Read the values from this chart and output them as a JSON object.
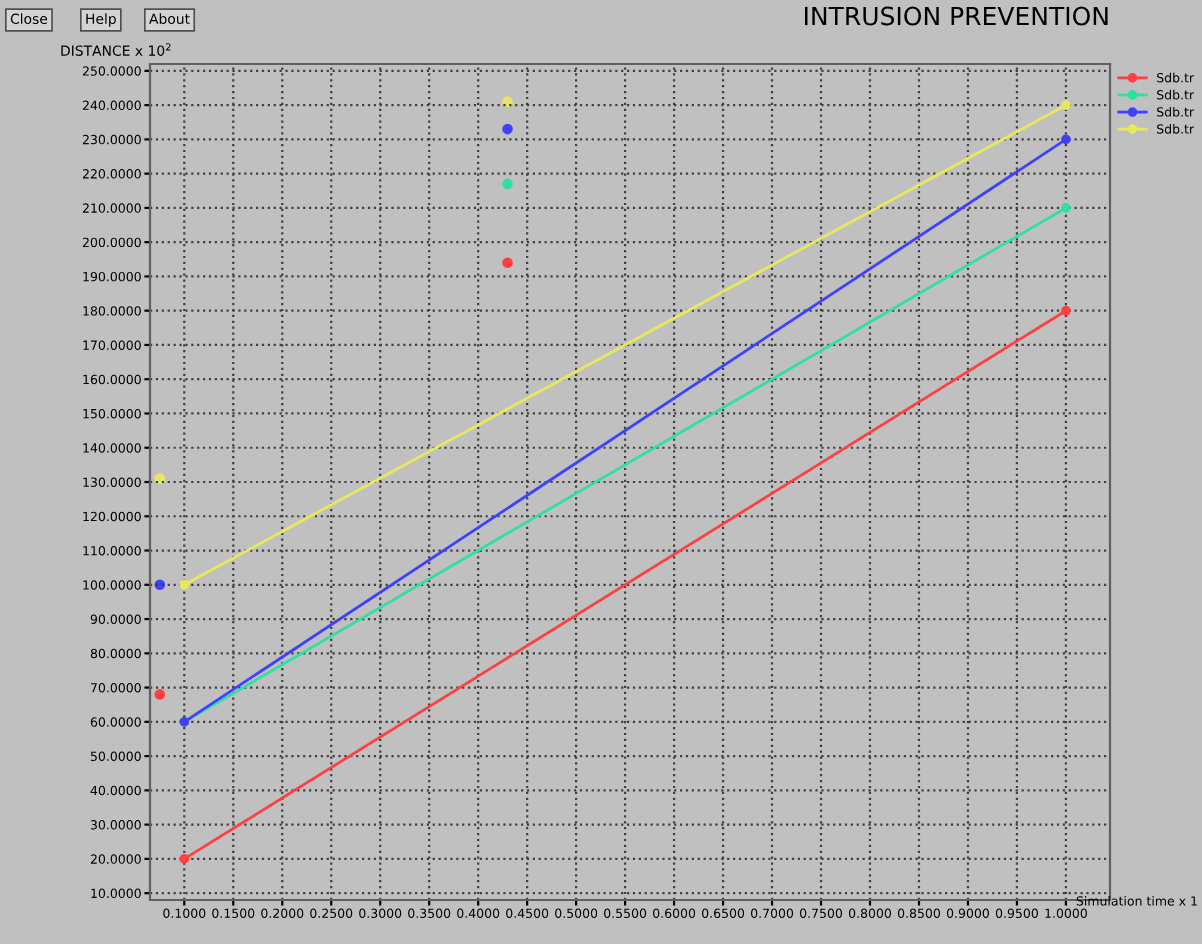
{
  "chart_data": {
    "type": "line",
    "title": "INTRUSION PREVENTION",
    "ylabel": "DISTANCE x 10$^{2}$",
    "xlabel": "Simulation time x 1",
    "annotations": [
      "Close",
      "Help",
      "About"
    ],
    "series": [
      {
        "name": "Sdb.tr",
        "color": "#ff4040",
        "x": [
          0.1,
          1.0
        ],
        "values": [
          20,
          180
        ]
      },
      {
        "name": "Sdb.tr",
        "color": "#30e0a0",
        "x": [
          0.1,
          1.0
        ],
        "values": [
          60,
          210
        ]
      },
      {
        "name": "Sdb.tr",
        "color": "#4040ff",
        "x": [
          0.1,
          1.0
        ],
        "values": [
          60,
          230
        ]
      },
      {
        "name": "Sdb.tr",
        "color": "#e8e860",
        "x": [
          0.1,
          1.0
        ],
        "values": [
          100,
          240
        ]
      },
      {
        "type": "scatter",
        "x": [
          0.075,
          0.075,
          0.075
        ],
        "values": [
          68,
          100,
          131
        ],
        "colors": [
          "#ff4040",
          "#4040ff",
          "#e8e860"
        ]
      },
      {
        "type": "scatter",
        "x": [
          0.43,
          0.43,
          0.43,
          0.43
        ],
        "values": [
          194,
          217,
          233,
          241
        ],
        "colors": [
          "#ff4040",
          "#30e0a0",
          "#4040ff",
          "#e8e860"
        ]
      }
    ],
    "marker": "circle",
    "grid": true,
    "legend": "top right",
    "xlim": [
      0.065,
      1.045
    ],
    "ylim": [
      8,
      252
    ],
    "xticks": [
      {
        "value": 0.1,
        "label": "0.1000"
      },
      {
        "value": 0.15,
        "label": "0.1500"
      },
      {
        "value": 0.2,
        "label": "0.2000"
      },
      {
        "value": 0.25,
        "label": "0.2500"
      },
      {
        "value": 0.3,
        "label": "0.3000"
      },
      {
        "value": 0.35,
        "label": "0.3500"
      },
      {
        "value": 0.4,
        "label": "0.4000"
      },
      {
        "value": 0.45,
        "label": "0.4500"
      },
      {
        "value": 0.5,
        "label": "0.5000"
      },
      {
        "value": 0.55,
        "label": "0.5500"
      },
      {
        "value": 0.6,
        "label": "0.6000"
      },
      {
        "value": 0.65,
        "label": "0.6500"
      },
      {
        "value": 0.7,
        "label": "0.7000"
      },
      {
        "value": 0.75,
        "label": "0.7500"
      },
      {
        "value": 0.8,
        "label": "0.8000"
      },
      {
        "value": 0.85,
        "label": "0.8500"
      },
      {
        "value": 0.9,
        "label": "0.9000"
      },
      {
        "value": 0.95,
        "label": "0.9500"
      },
      {
        "value": 1.0,
        "label": "1.0000"
      }
    ],
    "yticks": [
      {
        "value": 10,
        "label": "10.0000"
      },
      {
        "value": 20,
        "label": "20.0000"
      },
      {
        "value": 30,
        "label": "30.0000"
      },
      {
        "value": 40,
        "label": "40.0000"
      },
      {
        "value": 50,
        "label": "50.0000"
      },
      {
        "value": 60,
        "label": "60.0000"
      },
      {
        "value": 70,
        "label": "70.0000"
      },
      {
        "value": 80,
        "label": "80.0000"
      },
      {
        "value": 90,
        "label": "90.0000"
      },
      {
        "value": 100,
        "label": "100.0000"
      },
      {
        "value": 110,
        "label": "110.0000"
      },
      {
        "value": 120,
        "label": "120.0000"
      },
      {
        "value": 130,
        "label": "130.0000"
      },
      {
        "value": 140,
        "label": "140.0000"
      },
      {
        "value": 150,
        "label": "150.0000"
      },
      {
        "value": 160,
        "label": "160.0000"
      },
      {
        "value": 170,
        "label": "170.0000"
      },
      {
        "value": 180,
        "label": "180.0000"
      },
      {
        "value": 190,
        "label": "190.0000"
      },
      {
        "value": 200,
        "label": "200.0000"
      },
      {
        "value": 210,
        "label": "210.0000"
      },
      {
        "value": 220,
        "label": "220.0000"
      },
      {
        "value": 230,
        "label": "230.0000"
      },
      {
        "value": 240,
        "label": "240.0000"
      },
      {
        "value": 250,
        "label": "250.0000"
      }
    ]
  }
}
